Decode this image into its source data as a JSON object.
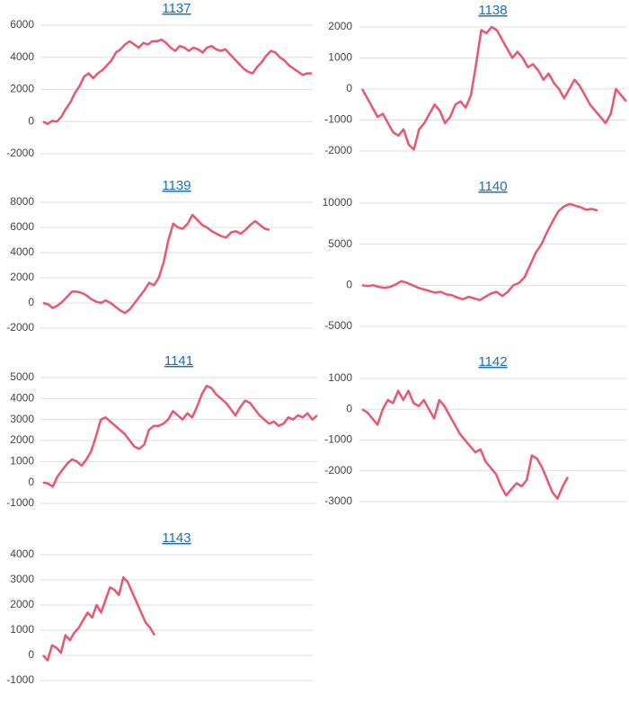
{
  "chart_data": [
    {
      "type": "line",
      "title": "1137",
      "color": "#ea5570",
      "grid": true,
      "ylim": [
        -2000,
        6000
      ],
      "yticks": [
        -2000,
        0,
        2000,
        4000,
        6000
      ],
      "values": [
        0,
        -150,
        50,
        0,
        300,
        800,
        1200,
        1800,
        2200,
        2800,
        3000,
        2700,
        3000,
        3200,
        3500,
        3800,
        4300,
        4500,
        4800,
        5000,
        4800,
        4600,
        4900,
        4800,
        5000,
        5000,
        5100,
        4900,
        4600,
        4400,
        4700,
        4600,
        4400,
        4600,
        4500,
        4300,
        4600,
        4700,
        4500,
        4400,
        4500,
        4200,
        3900,
        3600,
        3300,
        3100,
        3000,
        3400,
        3700,
        4100,
        4400,
        4300,
        4000,
        3800,
        3500,
        3300,
        3100,
        2900,
        3000,
        3000
      ]
    },
    {
      "type": "line",
      "title": "1138",
      "color": "#ea5570",
      "grid": true,
      "ylim": [
        -2000,
        2000
      ],
      "yticks": [
        -2000,
        -1000,
        0,
        1000,
        2000
      ],
      "values": [
        0,
        -300,
        -600,
        -900,
        -800,
        -1100,
        -1400,
        -1500,
        -1300,
        -1800,
        -1950,
        -1300,
        -1100,
        -800,
        -500,
        -700,
        -1100,
        -900,
        -500,
        -400,
        -600,
        -200,
        800,
        1900,
        1800,
        2000,
        1900,
        1600,
        1300,
        1000,
        1200,
        1000,
        700,
        800,
        600,
        300,
        500,
        200,
        0,
        -300,
        0,
        300,
        100,
        -200,
        -500,
        -700,
        -900,
        -1100,
        -800,
        0,
        -200,
        -400
      ]
    },
    {
      "type": "line",
      "title": "1139",
      "color": "#ea5570",
      "grid": true,
      "ylim": [
        -2000,
        8000
      ],
      "yticks": [
        -2000,
        0,
        2000,
        4000,
        6000,
        8000
      ],
      "values": [
        0,
        -100,
        -400,
        -200,
        100,
        500,
        900,
        900,
        800,
        600,
        300,
        100,
        0,
        200,
        0,
        -300,
        -600,
        -800,
        -500,
        0,
        500,
        1000,
        1600,
        1400,
        2000,
        3200,
        5000,
        6300,
        6000,
        5900,
        6300,
        7000,
        6600,
        6200,
        6000,
        5700,
        5500,
        5300,
        5200,
        5600,
        5700,
        5500,
        5800,
        6200,
        6500,
        6200,
        5900,
        5800
      ]
    },
    {
      "type": "line",
      "title": "1140",
      "color": "#ea5570",
      "grid": true,
      "ylim": [
        -5000,
        10000
      ],
      "yticks": [
        -5000,
        0,
        5000,
        10000
      ],
      "values": [
        0,
        -100,
        0,
        -200,
        -300,
        -200,
        100,
        500,
        300,
        0,
        -300,
        -500,
        -700,
        -900,
        -800,
        -1100,
        -1200,
        -1500,
        -1700,
        -1400,
        -1600,
        -1800,
        -1400,
        -1000,
        -800,
        -1300,
        -800,
        0,
        300,
        1000,
        2500,
        4000,
        5000,
        6500,
        7800,
        9000,
        9600,
        9900,
        9700,
        9500,
        9200,
        9300,
        9100
      ]
    },
    {
      "type": "line",
      "title": "1141",
      "color": "#ea5570",
      "grid": true,
      "ylim": [
        -1000,
        5000
      ],
      "yticks": [
        -1000,
        0,
        1000,
        2000,
        3000,
        4000,
        5000
      ],
      "values": [
        0,
        -50,
        -200,
        300,
        600,
        900,
        1100,
        1000,
        800,
        1100,
        1500,
        2200,
        3000,
        3100,
        2900,
        2700,
        2500,
        2300,
        2000,
        1700,
        1600,
        1800,
        2500,
        2700,
        2700,
        2800,
        3000,
        3400,
        3200,
        3000,
        3300,
        3100,
        3600,
        4200,
        4600,
        4500,
        4200,
        4000,
        3800,
        3500,
        3200,
        3600,
        3900,
        3800,
        3500,
        3200,
        3000,
        2800,
        2900,
        2700,
        2800,
        3100,
        3000,
        3200,
        3100,
        3300,
        3000,
        3200
      ]
    },
    {
      "type": "line",
      "title": "1142",
      "color": "#ea5570",
      "grid": true,
      "ylim": [
        -3000,
        1000
      ],
      "yticks": [
        -3000,
        -2000,
        -1000,
        0,
        1000
      ],
      "values": [
        0,
        -100,
        -300,
        -500,
        0,
        300,
        200,
        600,
        300,
        600,
        200,
        100,
        300,
        0,
        -300,
        300,
        100,
        -200,
        -500,
        -800,
        -1000,
        -1200,
        -1400,
        -1300,
        -1700,
        -1900,
        -2100,
        -2500,
        -2800,
        -2600,
        -2400,
        -2500,
        -2300,
        -1500,
        -1600,
        -1900,
        -2300,
        -2700,
        -2900,
        -2500,
        -2200
      ]
    },
    {
      "type": "line",
      "title": "1143",
      "color": "#ea5570",
      "grid": true,
      "ylim": [
        -1000,
        4000
      ],
      "yticks": [
        -1000,
        0,
        1000,
        2000,
        3000,
        4000
      ],
      "values": [
        0,
        -200,
        400,
        300,
        100,
        800,
        600,
        900,
        1100,
        1400,
        1700,
        1500,
        2000,
        1700,
        2200,
        2700,
        2600,
        2400,
        3100,
        2900,
        2500,
        2100,
        1700,
        1300,
        1100,
        800
      ]
    }
  ]
}
